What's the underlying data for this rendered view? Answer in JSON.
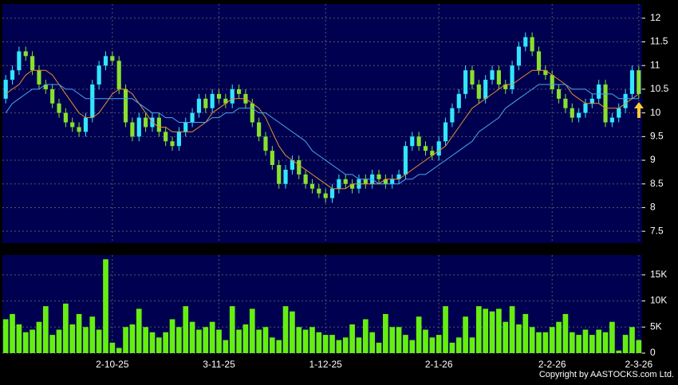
{
  "chart_data": {
    "type": "candlestick",
    "x": [
      null,
      null,
      null,
      null,
      null,
      null,
      null,
      null,
      null,
      null,
      null,
      null,
      null,
      null,
      null,
      null,
      "2-10-25",
      null,
      null,
      null,
      null,
      null,
      null,
      null,
      null,
      null,
      null,
      null,
      null,
      null,
      null,
      null,
      "3-11-25",
      null,
      null,
      null,
      null,
      null,
      null,
      null,
      null,
      null,
      null,
      null,
      null,
      null,
      null,
      null,
      "1-12-25",
      null,
      null,
      null,
      null,
      null,
      null,
      null,
      null,
      null,
      null,
      null,
      null,
      null,
      null,
      null,
      null,
      "2-1-26",
      null,
      null,
      null,
      null,
      null,
      null,
      null,
      null,
      null,
      null,
      null,
      null,
      null,
      null,
      null,
      null,
      "2-2-26",
      null,
      null,
      null,
      null,
      null,
      null,
      null,
      null,
      null,
      null,
      null,
      null,
      "2-3-26"
    ],
    "open": [
      10.3,
      10.7,
      10.9,
      11.3,
      11.2,
      10.9,
      10.6,
      10.5,
      10.2,
      10.0,
      9.8,
      9.7,
      9.6,
      9.9,
      10.6,
      11.0,
      11.2,
      11.1,
      10.5,
      9.8,
      9.5,
      9.9,
      9.7,
      9.9,
      9.6,
      9.4,
      9.3,
      9.6,
      9.8,
      10.0,
      10.3,
      10.1,
      10.4,
      10.3,
      10.2,
      10.5,
      10.4,
      10.2,
      9.8,
      9.5,
      9.2,
      8.9,
      8.5,
      8.8,
      9.0,
      8.7,
      8.5,
      8.4,
      8.3,
      8.2,
      8.4,
      8.6,
      8.5,
      8.4,
      8.6,
      8.5,
      8.7,
      8.6,
      8.5,
      8.6,
      8.7,
      9.3,
      9.5,
      9.3,
      9.2,
      9.1,
      9.4,
      9.8,
      10.1,
      10.4,
      10.9,
      10.6,
      10.3,
      10.7,
      10.9,
      10.6,
      10.5,
      11.0,
      11.4,
      11.6,
      11.3,
      10.9,
      10.8,
      10.5,
      10.3,
      10.1,
      9.9,
      10.0,
      10.2,
      10.3,
      10.6,
      9.8,
      9.9,
      10.1,
      10.4,
      10.9
    ],
    "high": [
      10.8,
      11.0,
      11.4,
      11.4,
      11.3,
      11.0,
      10.7,
      10.6,
      10.3,
      10.1,
      9.9,
      9.8,
      10.0,
      10.7,
      11.1,
      11.3,
      11.3,
      11.2,
      10.6,
      9.9,
      10.0,
      10.0,
      10.0,
      10.0,
      9.7,
      9.5,
      9.7,
      9.9,
      10.1,
      10.4,
      10.4,
      10.5,
      10.5,
      10.4,
      10.6,
      10.6,
      10.5,
      10.3,
      9.9,
      9.6,
      9.3,
      9.0,
      8.9,
      9.1,
      9.1,
      8.8,
      8.6,
      8.5,
      8.4,
      8.5,
      8.7,
      8.7,
      8.6,
      8.7,
      8.7,
      8.8,
      8.8,
      8.7,
      8.7,
      8.8,
      9.4,
      9.6,
      9.6,
      9.4,
      9.3,
      9.5,
      9.9,
      10.2,
      10.5,
      11.0,
      11.0,
      10.7,
      10.8,
      11.0,
      11.0,
      10.7,
      11.1,
      11.5,
      11.7,
      11.7,
      11.4,
      11.0,
      10.9,
      10.6,
      10.4,
      10.2,
      10.1,
      10.3,
      10.4,
      10.7,
      10.7,
      10.0,
      10.2,
      10.5,
      11.0,
      11.0
    ],
    "low": [
      10.2,
      10.6,
      10.8,
      11.1,
      10.8,
      10.5,
      10.4,
      10.1,
      9.9,
      9.7,
      9.6,
      9.5,
      9.5,
      9.8,
      10.5,
      10.9,
      11.0,
      10.4,
      9.7,
      9.4,
      9.4,
      9.6,
      9.6,
      9.5,
      9.3,
      9.2,
      9.2,
      9.5,
      9.7,
      9.9,
      10.0,
      10.0,
      10.2,
      10.1,
      10.1,
      10.3,
      10.1,
      9.7,
      9.4,
      9.1,
      8.8,
      8.4,
      8.4,
      8.7,
      8.6,
      8.4,
      8.3,
      8.2,
      8.1,
      8.1,
      8.3,
      8.4,
      8.3,
      8.3,
      8.4,
      8.4,
      8.5,
      8.4,
      8.4,
      8.5,
      8.6,
      9.2,
      9.2,
      9.1,
      9.0,
      9.0,
      9.3,
      9.7,
      10.0,
      10.3,
      10.5,
      10.2,
      10.2,
      10.6,
      10.5,
      10.4,
      10.4,
      10.9,
      11.3,
      11.2,
      10.8,
      10.7,
      10.4,
      10.2,
      10.0,
      9.8,
      9.8,
      9.9,
      10.1,
      10.2,
      9.7,
      9.7,
      9.8,
      10.0,
      10.3,
      10.3
    ],
    "close": [
      10.7,
      10.9,
      11.3,
      11.2,
      10.9,
      10.6,
      10.5,
      10.2,
      10.0,
      9.8,
      9.7,
      9.6,
      9.9,
      10.6,
      11.0,
      11.2,
      11.1,
      10.5,
      9.8,
      9.5,
      9.9,
      9.7,
      9.9,
      9.6,
      9.4,
      9.3,
      9.6,
      9.8,
      10.0,
      10.3,
      10.1,
      10.4,
      10.3,
      10.2,
      10.5,
      10.4,
      10.2,
      9.8,
      9.5,
      9.2,
      8.9,
      8.5,
      8.8,
      9.0,
      8.7,
      8.5,
      8.4,
      8.3,
      8.2,
      8.4,
      8.6,
      8.5,
      8.4,
      8.6,
      8.5,
      8.7,
      8.6,
      8.5,
      8.6,
      8.7,
      9.3,
      9.5,
      9.3,
      9.2,
      9.1,
      9.4,
      9.8,
      10.1,
      10.4,
      10.9,
      10.6,
      10.3,
      10.7,
      10.9,
      10.6,
      10.5,
      11.0,
      11.4,
      11.6,
      11.3,
      10.9,
      10.8,
      10.5,
      10.3,
      10.1,
      9.9,
      10.0,
      10.2,
      10.3,
      10.6,
      9.8,
      9.9,
      10.1,
      10.4,
      10.9,
      10.4
    ],
    "up_color": "#33e6ff",
    "down_color": "#88e030",
    "lines": [
      {
        "color": "#e8902a",
        "values": [
          10.4,
          10.5,
          10.6,
          10.8,
          10.9,
          10.9,
          10.9,
          10.8,
          10.6,
          10.4,
          10.2,
          10.0,
          9.9,
          9.9,
          10.0,
          10.2,
          10.4,
          10.5,
          10.5,
          10.4,
          10.2,
          10.0,
          9.8,
          9.7,
          9.7,
          9.6,
          9.6,
          9.6,
          9.6,
          9.7,
          9.8,
          10.0,
          10.1,
          10.2,
          10.3,
          10.3,
          10.3,
          10.2,
          10.1,
          9.9,
          9.6,
          9.3,
          9.1,
          9.0,
          8.9,
          8.8,
          8.7,
          8.6,
          8.5,
          8.4,
          8.4,
          8.4,
          8.5,
          8.5,
          8.5,
          8.5,
          8.5,
          8.6,
          8.6,
          8.6,
          8.7,
          8.8,
          8.9,
          9.0,
          9.1,
          9.2,
          9.3,
          9.5,
          9.7,
          9.9,
          10.1,
          10.2,
          10.3,
          10.4,
          10.5,
          10.6,
          10.6,
          10.7,
          10.8,
          10.9,
          10.9,
          10.9,
          10.8,
          10.7,
          10.6,
          10.4,
          10.3,
          10.2,
          10.2,
          10.2,
          10.1,
          10.1,
          10.1,
          10.2,
          10.3,
          10.4
        ]
      },
      {
        "color": "#4aa8f0",
        "values": [
          10.0,
          10.2,
          10.3,
          10.4,
          10.5,
          10.5,
          10.6,
          10.6,
          10.6,
          10.5,
          10.5,
          10.4,
          10.3,
          10.3,
          10.3,
          10.3,
          10.3,
          10.3,
          10.3,
          10.3,
          10.2,
          10.1,
          10.0,
          10.0,
          9.9,
          9.9,
          9.8,
          9.8,
          9.8,
          9.8,
          9.8,
          9.9,
          9.9,
          10.0,
          10.0,
          10.1,
          10.1,
          10.1,
          10.0,
          10.0,
          9.9,
          9.8,
          9.7,
          9.6,
          9.5,
          9.4,
          9.2,
          9.1,
          9.0,
          8.9,
          8.8,
          8.7,
          8.7,
          8.6,
          8.6,
          8.6,
          8.5,
          8.5,
          8.5,
          8.5,
          8.6,
          8.6,
          8.7,
          8.7,
          8.8,
          8.9,
          9.0,
          9.1,
          9.2,
          9.3,
          9.4,
          9.6,
          9.7,
          9.8,
          9.9,
          10.1,
          10.2,
          10.3,
          10.4,
          10.5,
          10.6,
          10.6,
          10.6,
          10.6,
          10.6,
          10.5,
          10.5,
          10.5,
          10.4,
          10.4,
          10.4,
          10.4,
          10.3,
          10.3,
          10.3,
          10.3
        ]
      }
    ],
    "ylim": [
      7.25,
      12.3
    ],
    "yticks": [
      7.5,
      8,
      8.5,
      9,
      9.5,
      10,
      10.5,
      11,
      11.5,
      12
    ],
    "grid": true,
    "volume": {
      "color": "#66ee11",
      "ylim": [
        0,
        18800
      ],
      "yticks": [
        0,
        {
          "value": 5000,
          "label": "5K"
        },
        {
          "value": 10000,
          "label": "10K"
        },
        {
          "value": 15000,
          "label": "15K"
        }
      ],
      "values": [
        6500,
        7500,
        5500,
        4000,
        4500,
        6000,
        9000,
        3500,
        4500,
        9500,
        5500,
        7500,
        5000,
        7000,
        4500,
        18000,
        2000,
        1000,
        5000,
        5500,
        8500,
        5000,
        4000,
        3000,
        4000,
        6500,
        5000,
        9000,
        6000,
        4500,
        5000,
        6000,
        4500,
        2500,
        9000,
        4500,
        5500,
        8500,
        4500,
        5000,
        3000,
        2500,
        9000,
        8000,
        5000,
        4500,
        5000,
        4000,
        3500,
        3500,
        2500,
        3000,
        5500,
        3000,
        6500,
        4000,
        2000,
        7500,
        5000,
        5000,
        3500,
        2500,
        7000,
        4500,
        3000,
        3500,
        9000,
        2000,
        3000,
        7000,
        3000,
        9000,
        8500,
        8000,
        8500,
        6000,
        9000,
        5500,
        7500,
        5000,
        4000,
        4000,
        5000,
        6000,
        7500,
        4000,
        3500,
        4500,
        3500,
        4500,
        4000,
        6000,
        500,
        3500,
        5000,
        2500
      ]
    }
  },
  "copyright": "Copyright by AASTOCKS.com Ltd."
}
